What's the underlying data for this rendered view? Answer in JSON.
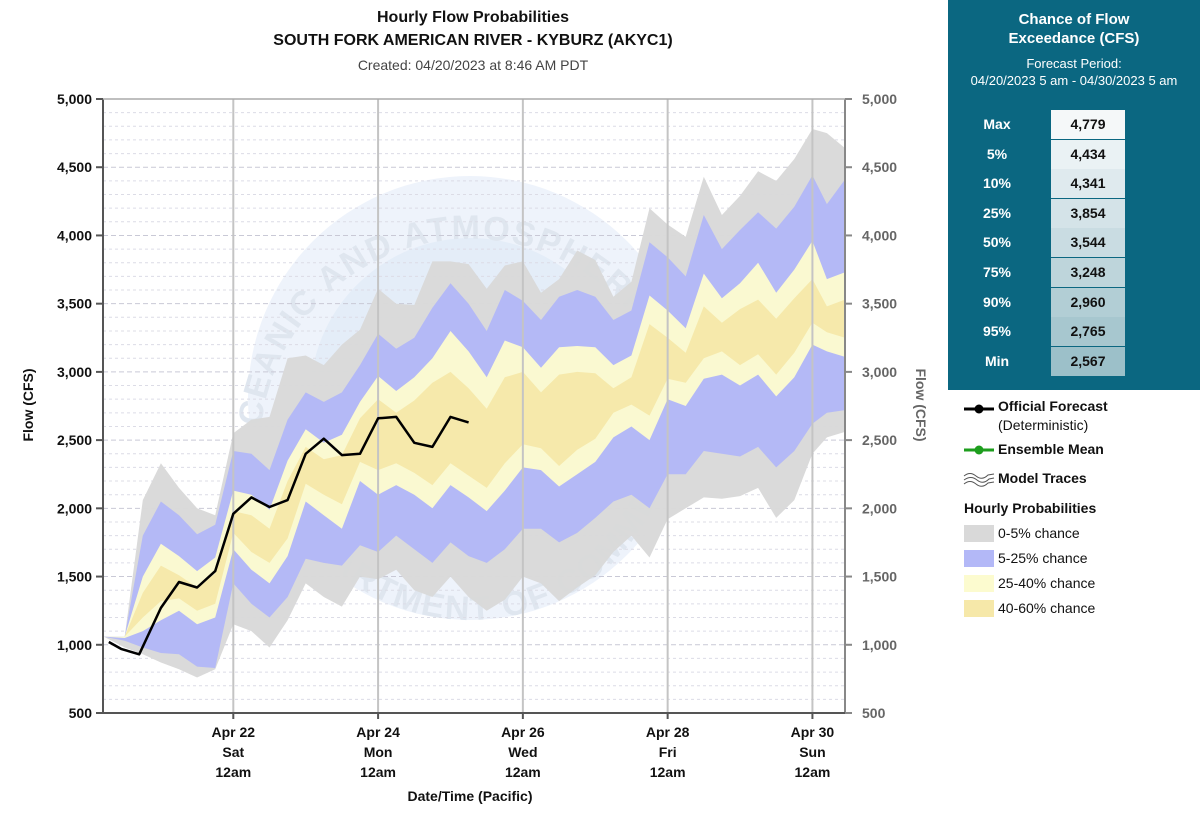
{
  "header": {
    "title": "Hourly Flow Probabilities",
    "subtitle": "SOUTH FORK AMERICAN RIVER - KYBURZ (AKYC1)",
    "created": "Created: 04/20/2023 at 8:46 AM PDT"
  },
  "exceedance_panel": {
    "title_line1": "Chance of Flow",
    "title_line2": "Exceedance (CFS)",
    "period_label": "Forecast Period:",
    "period_range": "04/20/2023 5 am - 04/30/2023 5 am",
    "rows": [
      {
        "label": "Max",
        "value": "4,779"
      },
      {
        "label": "5%",
        "value": "4,434"
      },
      {
        "label": "10%",
        "value": "4,341"
      },
      {
        "label": "25%",
        "value": "3,854"
      },
      {
        "label": "50%",
        "value": "3,544"
      },
      {
        "label": "75%",
        "value": "3,248"
      },
      {
        "label": "90%",
        "value": "2,960"
      },
      {
        "label": "95%",
        "value": "2,765"
      },
      {
        "label": "Min",
        "value": "2,567"
      }
    ]
  },
  "legend": {
    "official_forecast": "Official Forecast",
    "official_forecast_sub": "(Deterministic)",
    "ensemble_mean": "Ensemble Mean",
    "model_traces": "Model Traces",
    "hourly_probabilities": "Hourly Probabilities",
    "band_0_5": "0-5% chance",
    "band_5_25": "5-25% chance",
    "band_25_40": "25-40% chance",
    "band_40_60": "40-60% chance"
  },
  "colors": {
    "band_0_5": "#d9d9d9",
    "band_5_25": "#b3b8f7",
    "band_25_40": "#fcfbcf",
    "band_40_60": "#f6e8a9",
    "official_forecast": "#000000",
    "ensemble_mean": "#1e9e1e",
    "panel_bg": "#0b6781"
  },
  "watermark_text": "NATIONAL OCEANIC AND ATMOSPHERIC ADMINISTRATION · U.S. DEPARTMENT OF COMMERCE",
  "chart_data": {
    "type": "area",
    "title": "Hourly Flow Probabilities",
    "subtitle": "SOUTH FORK AMERICAN RIVER - KYBURZ (AKYC1)",
    "xlabel": "Date/Time (Pacific)",
    "ylabel": "Flow (CFS)",
    "ylim": [
      500,
      5000
    ],
    "yticks": [
      500,
      1000,
      1500,
      2000,
      2500,
      3000,
      3500,
      4000,
      4500,
      5000
    ],
    "ytick_labels": [
      "500",
      "1,000",
      "1,500",
      "2,000",
      "2,500",
      "3,000",
      "3,500",
      "4,000",
      "4,500",
      "5,000"
    ],
    "x_unit": "days since 04/20/2023 12am",
    "xlim": [
      0.2,
      10.45
    ],
    "xticks": [
      {
        "x": 2,
        "lines": [
          "Apr 22",
          "Sat",
          "12am"
        ]
      },
      {
        "x": 4,
        "lines": [
          "Apr 24",
          "Mon",
          "12am"
        ]
      },
      {
        "x": 6,
        "lines": [
          "Apr 26",
          "Wed",
          "12am"
        ]
      },
      {
        "x": 8,
        "lines": [
          "Apr 28",
          "Fri",
          "12am"
        ]
      },
      {
        "x": 10,
        "lines": [
          "Apr 30",
          "Sun",
          "12am"
        ]
      }
    ],
    "grid": true,
    "legend_position": "right",
    "x": [
      0.21,
      0.5,
      0.75,
      1.0,
      1.25,
      1.5,
      1.75,
      2.0,
      2.25,
      2.5,
      2.75,
      3.0,
      3.25,
      3.5,
      3.75,
      4.0,
      4.25,
      4.5,
      4.75,
      5.0,
      5.25,
      5.5,
      5.75,
      6.0,
      6.25,
      6.5,
      6.75,
      7.0,
      7.25,
      7.5,
      7.75,
      8.0,
      8.25,
      8.5,
      8.75,
      9.0,
      9.25,
      9.5,
      9.75,
      10.0,
      10.2,
      10.45
    ],
    "bands": [
      {
        "name": "0-5% chance",
        "color": "#d9d9d9",
        "lower": [
          1060,
          980,
          930,
          870,
          820,
          760,
          820,
          1150,
          1100,
          980,
          1180,
          1450,
          1350,
          1280,
          1500,
          1480,
          1550,
          1400,
          1350,
          1500,
          1350,
          1250,
          1330,
          1500,
          1450,
          1320,
          1420,
          1510,
          1680,
          1800,
          1640,
          1920,
          2000,
          2080,
          2070,
          2090,
          2150,
          1930,
          2060,
          2400,
          2520,
          2560
        ],
        "upper": [
          1060,
          1060,
          2060,
          2330,
          2150,
          2000,
          1950,
          2550,
          2650,
          2670,
          3100,
          3120,
          3050,
          3200,
          3310,
          3610,
          3500,
          3490,
          3810,
          3810,
          3790,
          3610,
          3780,
          3810,
          3580,
          3680,
          3890,
          3820,
          3550,
          3660,
          4200,
          4080,
          3990,
          4430,
          4150,
          4290,
          4470,
          4400,
          4560,
          4780,
          4750,
          4640
        ]
      },
      {
        "name": "5-25% chance",
        "color": "#b3b8f7",
        "lower": [
          1060,
          1030,
          980,
          940,
          930,
          840,
          830,
          1450,
          1300,
          1200,
          1350,
          1630,
          1600,
          1580,
          1730,
          1680,
          1800,
          1700,
          1600,
          1750,
          1650,
          1600,
          1700,
          1850,
          1850,
          1750,
          1820,
          1930,
          2050,
          2100,
          2000,
          2250,
          2250,
          2420,
          2400,
          2380,
          2450,
          2300,
          2420,
          2620,
          2700,
          2720
        ],
        "upper": [
          1060,
          1060,
          1800,
          2050,
          1950,
          1810,
          1880,
          2420,
          2400,
          2280,
          2650,
          2850,
          2780,
          2850,
          3050,
          3280,
          3170,
          3250,
          3470,
          3650,
          3500,
          3300,
          3600,
          3520,
          3380,
          3550,
          3600,
          3550,
          3380,
          3450,
          3950,
          3840,
          3700,
          4150,
          3900,
          4040,
          4170,
          4050,
          4210,
          4440,
          4230,
          4410
        ]
      },
      {
        "name": "25-40% chance",
        "color": "#fcfbcf",
        "lower": [
          1060,
          1050,
          1100,
          1180,
          1250,
          1150,
          1200,
          1700,
          1550,
          1450,
          1650,
          2050,
          1950,
          1850,
          2200,
          2100,
          2170,
          2100,
          2000,
          2170,
          2080,
          1980,
          2130,
          2300,
          2280,
          2160,
          2250,
          2340,
          2520,
          2600,
          2500,
          2800,
          2750,
          2950,
          2980,
          2900,
          2980,
          2820,
          2960,
          3200,
          3150,
          3110
        ],
        "upper": [
          1060,
          1060,
          1500,
          1740,
          1650,
          1540,
          1640,
          2130,
          2100,
          1990,
          2350,
          2580,
          2480,
          2540,
          2780,
          2970,
          2860,
          2960,
          3100,
          3300,
          3150,
          2960,
          3230,
          3180,
          3030,
          3180,
          3190,
          3180,
          3050,
          3120,
          3560,
          3450,
          3320,
          3720,
          3540,
          3650,
          3800,
          3580,
          3750,
          3960,
          3680,
          3730
        ]
      },
      {
        "name": "40-60% chance",
        "color": "#f6e8a9",
        "lower": [
          1060,
          1060,
          1200,
          1320,
          1340,
          1250,
          1300,
          1820,
          1680,
          1600,
          1780,
          2180,
          2100,
          2030,
          2340,
          2280,
          2330,
          2260,
          2170,
          2330,
          2240,
          2150,
          2330,
          2470,
          2440,
          2310,
          2430,
          2510,
          2700,
          2760,
          2680,
          2950,
          2920,
          3100,
          3150,
          3050,
          3130,
          2980,
          3140,
          3360,
          3290,
          3250
        ],
        "upper": [
          1060,
          1060,
          1380,
          1580,
          1510,
          1420,
          1520,
          1980,
          1950,
          1850,
          2200,
          2450,
          2360,
          2390,
          2660,
          2800,
          2700,
          2790,
          2920,
          3000,
          2880,
          2730,
          2960,
          3000,
          2850,
          2980,
          3000,
          2990,
          2880,
          2960,
          3350,
          3250,
          3140,
          3480,
          3360,
          3460,
          3530,
          3390,
          3540,
          3680,
          3480,
          3530
        ]
      }
    ],
    "series": [
      {
        "name": "Official Forecast",
        "color": "#000000",
        "x": [
          0.28,
          0.45,
          0.7,
          1.0,
          1.25,
          1.5,
          1.75,
          2.0,
          2.25,
          2.5,
          2.75,
          3.0,
          3.25,
          3.5,
          3.75,
          4.0,
          4.25,
          4.5,
          4.75,
          5.0,
          5.25
        ],
        "values": [
          1020,
          970,
          930,
          1270,
          1460,
          1420,
          1540,
          1960,
          2080,
          2010,
          2060,
          2400,
          2510,
          2390,
          2400,
          2660,
          2670,
          2480,
          2450,
          2670,
          2630
        ]
      }
    ]
  }
}
